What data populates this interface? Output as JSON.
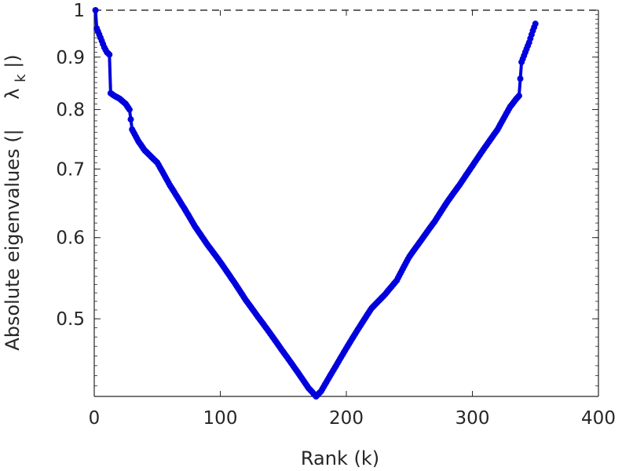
{
  "chart_data": {
    "type": "line",
    "xlabel": "Rank (k)",
    "ylabel": "Absolute eigenvalues (|",
    "ylabel_symbol": "λ",
    "ylabel_subscript": "k",
    "ylabel_close": "|)",
    "xlim": [
      0,
      400
    ],
    "ylim": [
      0.42,
      1.0
    ],
    "yscale": "log",
    "xticks": [
      0,
      100,
      200,
      300,
      400
    ],
    "xtick_labels": [
      "0",
      "100",
      "200",
      "300",
      "400"
    ],
    "yticks": [
      0.5,
      0.6,
      0.7,
      0.8,
      0.9,
      1.0
    ],
    "ytick_labels": [
      "0.5",
      "0.6",
      "0.7",
      "0.8",
      "0.9",
      "1"
    ],
    "grid": false,
    "reference_line": {
      "y": 1.0,
      "style": "dashed"
    },
    "series": [
      {
        "color": "#0000dd",
        "marker": "circle",
        "points": [
          [
            1,
            1.0
          ],
          [
            2,
            0.96
          ],
          [
            5,
            0.94
          ],
          [
            8,
            0.92
          ],
          [
            10,
            0.91
          ],
          [
            12,
            0.905
          ],
          [
            13,
            0.83
          ],
          [
            16,
            0.825
          ],
          [
            20,
            0.82
          ],
          [
            25,
            0.81
          ],
          [
            28,
            0.8
          ],
          [
            30,
            0.765
          ],
          [
            35,
            0.745
          ],
          [
            40,
            0.73
          ],
          [
            45,
            0.72
          ],
          [
            50,
            0.71
          ],
          [
            60,
            0.675
          ],
          [
            70,
            0.645
          ],
          [
            80,
            0.615
          ],
          [
            90,
            0.59
          ],
          [
            100,
            0.568
          ],
          [
            110,
            0.545
          ],
          [
            120,
            0.522
          ],
          [
            130,
            0.502
          ],
          [
            140,
            0.483
          ],
          [
            150,
            0.464
          ],
          [
            160,
            0.446
          ],
          [
            170,
            0.428
          ],
          [
            176,
            0.42
          ],
          [
            180,
            0.425
          ],
          [
            190,
            0.446
          ],
          [
            200,
            0.468
          ],
          [
            210,
            0.49
          ],
          [
            220,
            0.512
          ],
          [
            230,
            0.527
          ],
          [
            240,
            0.545
          ],
          [
            250,
            0.575
          ],
          [
            260,
            0.598
          ],
          [
            270,
            0.622
          ],
          [
            280,
            0.65
          ],
          [
            290,
            0.676
          ],
          [
            300,
            0.705
          ],
          [
            310,
            0.735
          ],
          [
            320,
            0.765
          ],
          [
            330,
            0.805
          ],
          [
            335,
            0.82
          ],
          [
            337,
            0.825
          ],
          [
            339,
            0.89
          ],
          [
            342,
            0.91
          ],
          [
            345,
            0.93
          ],
          [
            348,
            0.955
          ],
          [
            350,
            0.97
          ]
        ]
      }
    ]
  }
}
